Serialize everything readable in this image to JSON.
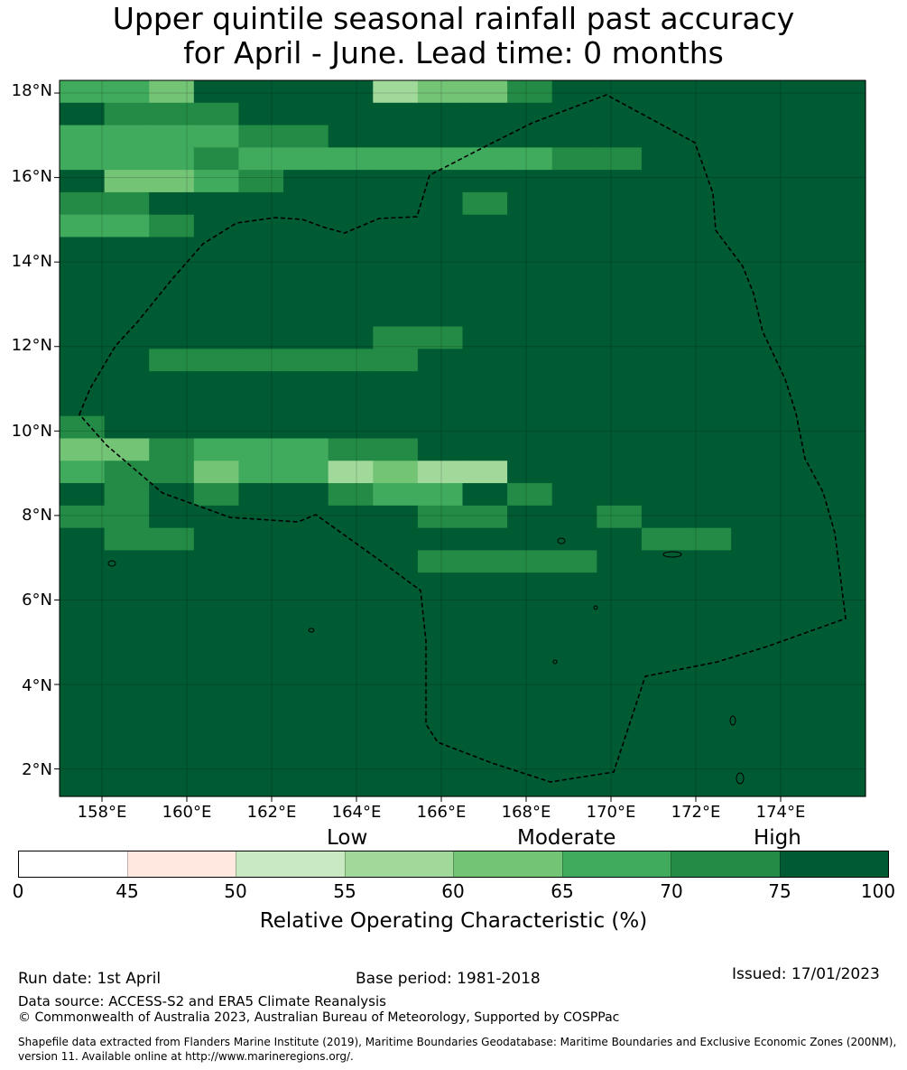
{
  "title": {
    "line1": "Upper quintile seasonal rainfall past accuracy",
    "line2": "for April - June. Lead time: 0 months"
  },
  "map": {
    "lat_labels": [
      "18°N",
      "16°N",
      "14°N",
      "12°N",
      "10°N",
      "8°N",
      "6°N",
      "4°N",
      "2°N"
    ],
    "lon_labels": [
      "158°E",
      "160°E",
      "162°E",
      "164°E",
      "166°E",
      "168°E",
      "170°E",
      "172°E",
      "174°E"
    ],
    "lon_range": [
      157.0,
      176.0
    ],
    "lat_range": [
      1.35,
      18.3
    ],
    "grid_rows": [
      "554777734467889999",
      "766677999999999999",
      "555566789887788888",
      "555655555556678888",
      "744567879888879888",
      "667777788688888888",
      "556888887888887888",
      "888888888888888888",
      "888898888888888888",
      "888888888899998888",
      "888878888888888888",
      "788888866988888988",
      "776666667888898988",
      "888888788998888888",
      "899888778888888888",
      "678988777899888888",
      "446555668999998888",
      "566455343389888888",
      "868677655768998888",
      "667788776677688888",
      "766778788778766778",
      "788888886666777788",
      "889888778778788888",
      "888877887888888888",
      "888888788888888888",
      "888888888888888888",
      "787888888888888888",
      "888888888888888888",
      "888888888888888888",
      "888888888888888888",
      "888888888888888888",
      "888888888888888888"
    ]
  },
  "categories": [
    "Low",
    "Moderate",
    "High"
  ],
  "colorbar": {
    "ticks": [
      "0",
      "45",
      "50",
      "55",
      "60",
      "65",
      "70",
      "75",
      "100"
    ],
    "colors": [
      "#ffffff",
      "#fee8df",
      "#c8e9c1",
      "#a1d99b",
      "#74c476",
      "#41ab5d",
      "#238b45",
      "#005a32"
    ],
    "label": "Relative Operating Characteristic (%)"
  },
  "footer": {
    "run_date": "Run date: 1st April",
    "base_period": "Base period: 1981-2018",
    "issued": "Issued: 17/01/2023",
    "data_source": "Data source: ACCESS-S2 and ERA5 Climate Reanalysis",
    "copyright": "© Commonwealth of Australia 2023, Australian Bureau of Meteorology, Supported by COSPPac",
    "shapefile_line1": "Shapefile data extracted from Flanders Marine Institute (2019), Maritime Boundaries Geodatabase: Maritime Boundaries and Exclusive Economic Zones (200NM),",
    "shapefile_line2": "version 11. Available online at http://www.marineregions.org/."
  }
}
